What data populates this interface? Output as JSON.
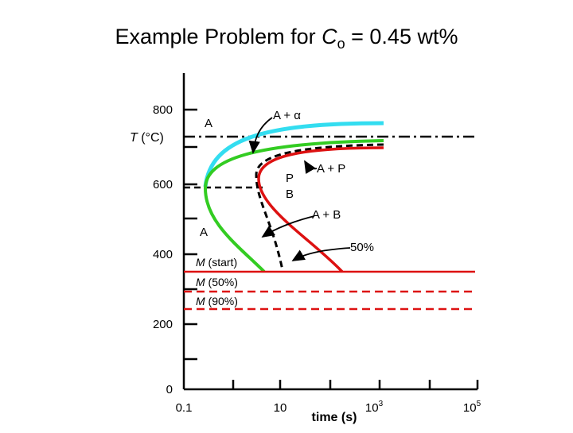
{
  "title": {
    "prefix": "Example Problem for ",
    "symbol": "C",
    "subscript": "o",
    "suffix": " = 0.45 wt%"
  },
  "y_axis": {
    "symbol": "T",
    "unit": " (°C)",
    "ticks": [
      "800",
      "600",
      "400",
      "200",
      "0"
    ]
  },
  "x_axis": {
    "label": "time (s)",
    "ticks": [
      {
        "text": "0.1"
      },
      {
        "text": "10"
      },
      {
        "base": "10",
        "exponent": "3"
      },
      {
        "base": "10",
        "exponent": "5"
      }
    ]
  },
  "regions": [
    "A",
    "A",
    "P",
    "B"
  ],
  "callouts": [
    "A + α",
    "A + P",
    "A + B",
    "50%"
  ],
  "martensite": [
    {
      "symbol": "M",
      "note": " (start)"
    },
    {
      "symbol": "M",
      "note": " (50%)"
    },
    {
      "symbol": "M",
      "note": " (90%)"
    }
  ]
}
